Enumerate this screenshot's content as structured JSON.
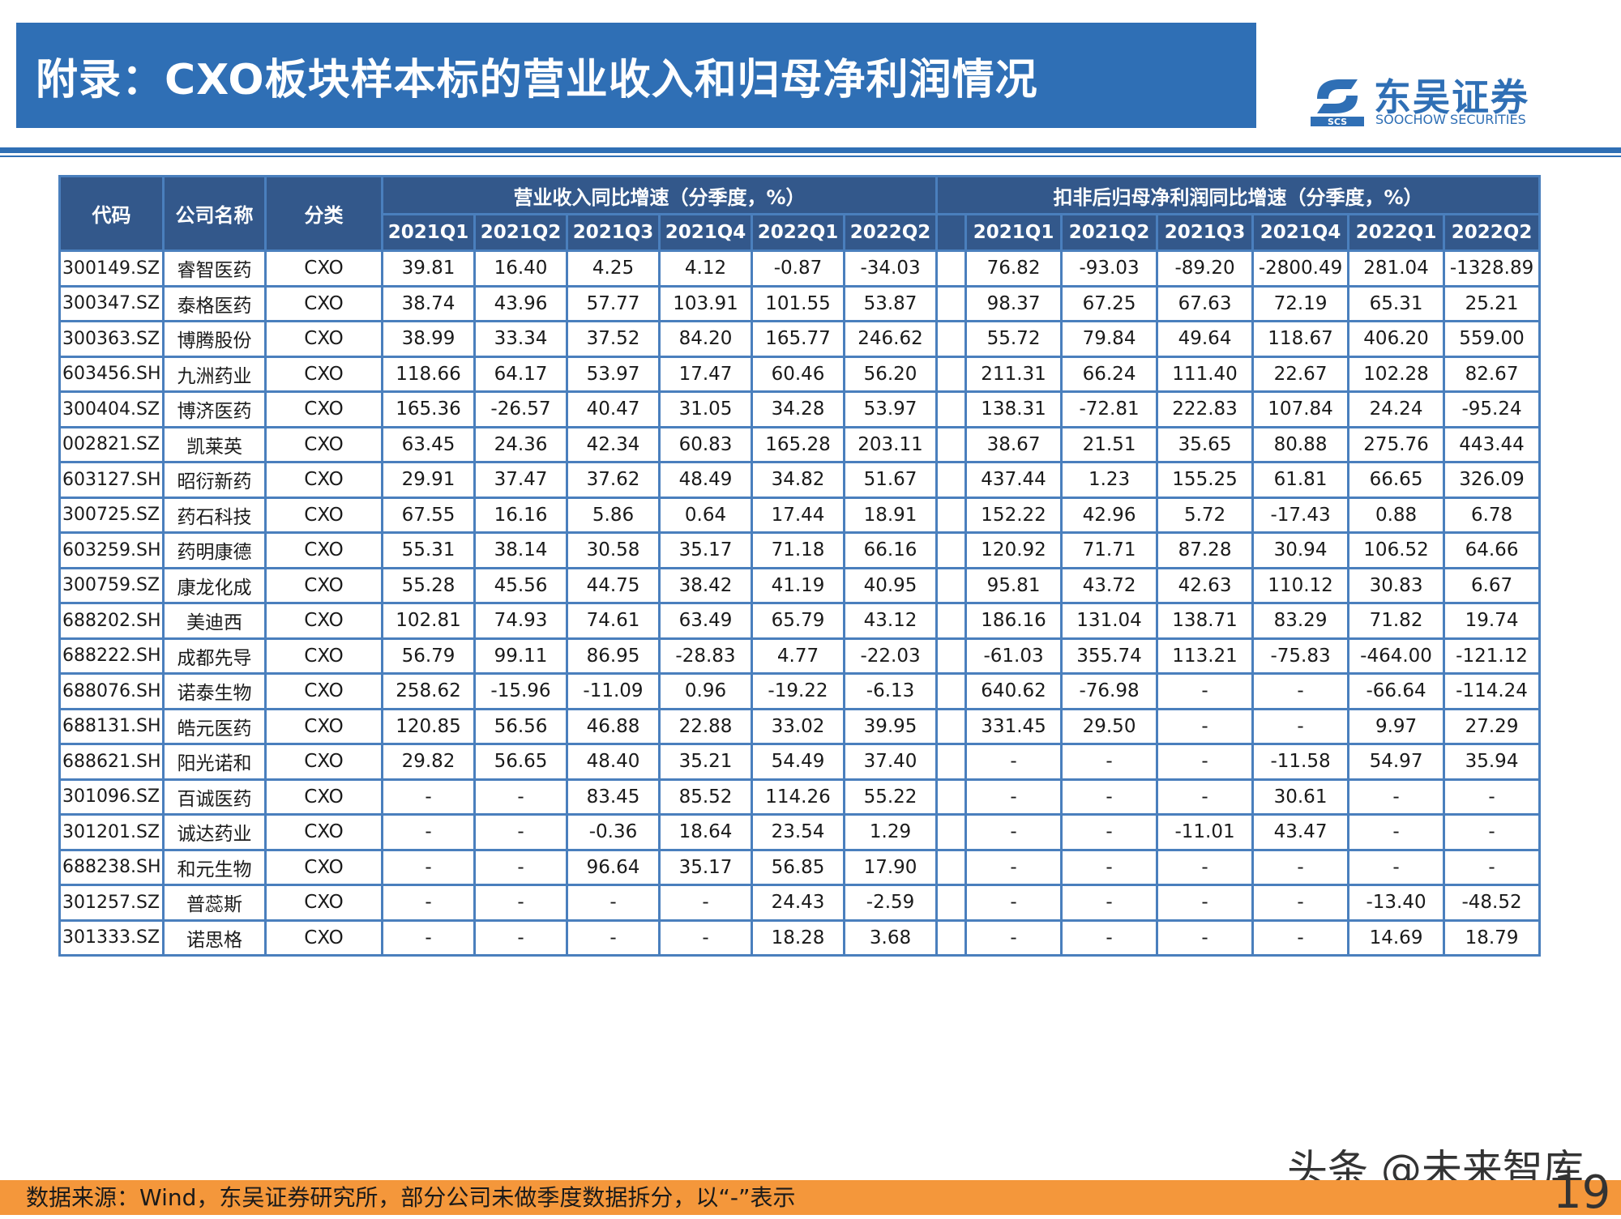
{
  "title": "附录：CXO板块样本标的营业收入和归母净利润情况",
  "logo": {
    "cn": "东吴证券",
    "en": "SOOCHOW SECURITIES",
    "mark_text": "SCS"
  },
  "table": {
    "headers": {
      "code": "代码",
      "name": "公司名称",
      "category": "分类",
      "revenue_group": "营业收入同比增速（分季度，%）",
      "profit_group": "扣非后归母净利润同比增速（分季度，%）",
      "quarters": [
        "2021Q1",
        "2021Q2",
        "2021Q3",
        "2021Q4",
        "2022Q1",
        "2022Q2"
      ]
    },
    "rows": [
      {
        "code": "300149.SZ",
        "name": "睿智医药",
        "category": "CXO",
        "revenue": [
          "39.81",
          "16.40",
          "4.25",
          "4.12",
          "-0.87",
          "-34.03"
        ],
        "profit": [
          "76.82",
          "-93.03",
          "-89.20",
          "-2800.49",
          "281.04",
          "-1328.89"
        ]
      },
      {
        "code": "300347.SZ",
        "name": "泰格医药",
        "category": "CXO",
        "revenue": [
          "38.74",
          "43.96",
          "57.77",
          "103.91",
          "101.55",
          "53.87"
        ],
        "profit": [
          "98.37",
          "67.25",
          "67.63",
          "72.19",
          "65.31",
          "25.21"
        ]
      },
      {
        "code": "300363.SZ",
        "name": "博腾股份",
        "category": "CXO",
        "revenue": [
          "38.99",
          "33.34",
          "37.52",
          "84.20",
          "165.77",
          "246.62"
        ],
        "profit": [
          "55.72",
          "79.84",
          "49.64",
          "118.67",
          "406.20",
          "559.00"
        ]
      },
      {
        "code": "603456.SH",
        "name": "九洲药业",
        "category": "CXO",
        "revenue": [
          "118.66",
          "64.17",
          "53.97",
          "17.47",
          "60.46",
          "56.20"
        ],
        "profit": [
          "211.31",
          "66.24",
          "111.40",
          "22.67",
          "102.28",
          "82.67"
        ]
      },
      {
        "code": "300404.SZ",
        "name": "博济医药",
        "category": "CXO",
        "revenue": [
          "165.36",
          "-26.57",
          "40.47",
          "31.05",
          "34.28",
          "53.97"
        ],
        "profit": [
          "138.31",
          "-72.81",
          "222.83",
          "107.84",
          "24.24",
          "-95.24"
        ]
      },
      {
        "code": "002821.SZ",
        "name": "凯莱英",
        "category": "CXO",
        "revenue": [
          "63.45",
          "24.36",
          "42.34",
          "60.83",
          "165.28",
          "203.11"
        ],
        "profit": [
          "38.67",
          "21.51",
          "35.65",
          "80.88",
          "275.76",
          "443.44"
        ]
      },
      {
        "code": "603127.SH",
        "name": "昭衍新药",
        "category": "CXO",
        "revenue": [
          "29.91",
          "37.47",
          "37.62",
          "48.49",
          "34.82",
          "51.67"
        ],
        "profit": [
          "437.44",
          "1.23",
          "155.25",
          "61.81",
          "66.65",
          "326.09"
        ]
      },
      {
        "code": "300725.SZ",
        "name": "药石科技",
        "category": "CXO",
        "revenue": [
          "67.55",
          "16.16",
          "5.86",
          "0.64",
          "17.44",
          "18.91"
        ],
        "profit": [
          "152.22",
          "42.96",
          "5.72",
          "-17.43",
          "0.88",
          "6.78"
        ]
      },
      {
        "code": "603259.SH",
        "name": "药明康德",
        "category": "CXO",
        "revenue": [
          "55.31",
          "38.14",
          "30.58",
          "35.17",
          "71.18",
          "66.16"
        ],
        "profit": [
          "120.92",
          "71.71",
          "87.28",
          "30.94",
          "106.52",
          "64.66"
        ]
      },
      {
        "code": "300759.SZ",
        "name": "康龙化成",
        "category": "CXO",
        "revenue": [
          "55.28",
          "45.56",
          "44.75",
          "38.42",
          "41.19",
          "40.95"
        ],
        "profit": [
          "95.81",
          "43.72",
          "42.63",
          "110.12",
          "30.83",
          "6.67"
        ]
      },
      {
        "code": "688202.SH",
        "name": "美迪西",
        "category": "CXO",
        "revenue": [
          "102.81",
          "74.93",
          "74.61",
          "63.49",
          "65.79",
          "43.12"
        ],
        "profit": [
          "186.16",
          "131.04",
          "138.71",
          "83.29",
          "71.82",
          "19.74"
        ]
      },
      {
        "code": "688222.SH",
        "name": "成都先导",
        "category": "CXO",
        "revenue": [
          "56.79",
          "99.11",
          "86.95",
          "-28.83",
          "4.77",
          "-22.03"
        ],
        "profit": [
          "-61.03",
          "355.74",
          "113.21",
          "-75.83",
          "-464.00",
          "-121.12"
        ]
      },
      {
        "code": "688076.SH",
        "name": "诺泰生物",
        "category": "CXO",
        "revenue": [
          "258.62",
          "-15.96",
          "-11.09",
          "0.96",
          "-19.22",
          "-6.13"
        ],
        "profit": [
          "640.62",
          "-76.98",
          "-",
          "-",
          "-66.64",
          "-114.24"
        ]
      },
      {
        "code": "688131.SH",
        "name": "皓元医药",
        "category": "CXO",
        "revenue": [
          "120.85",
          "56.56",
          "46.88",
          "22.88",
          "33.02",
          "39.95"
        ],
        "profit": [
          "331.45",
          "29.50",
          "-",
          "-",
          "9.97",
          "27.29"
        ]
      },
      {
        "code": "688621.SH",
        "name": "阳光诺和",
        "category": "CXO",
        "revenue": [
          "29.82",
          "56.65",
          "48.40",
          "35.21",
          "54.49",
          "37.40"
        ],
        "profit": [
          "-",
          "-",
          "-",
          "-11.58",
          "54.97",
          "35.94"
        ]
      },
      {
        "code": "301096.SZ",
        "name": "百诚医药",
        "category": "CXO",
        "revenue": [
          "-",
          "-",
          "83.45",
          "85.52",
          "114.26",
          "55.22"
        ],
        "profit": [
          "-",
          "-",
          "-",
          "30.61",
          "-",
          "-"
        ]
      },
      {
        "code": "301201.SZ",
        "name": "诚达药业",
        "category": "CXO",
        "revenue": [
          "-",
          "-",
          "-0.36",
          "18.64",
          "23.54",
          "1.29"
        ],
        "profit": [
          "-",
          "-",
          "-11.01",
          "43.47",
          "-",
          "-"
        ]
      },
      {
        "code": "688238.SH",
        "name": "和元生物",
        "category": "CXO",
        "revenue": [
          "-",
          "-",
          "96.64",
          "35.17",
          "56.85",
          "17.90"
        ],
        "profit": [
          "-",
          "-",
          "-",
          "-",
          "-",
          "-"
        ]
      },
      {
        "code": "301257.SZ",
        "name": "普蕊斯",
        "category": "CXO",
        "revenue": [
          "-",
          "-",
          "-",
          "-",
          "24.43",
          "-2.59"
        ],
        "profit": [
          "-",
          "-",
          "-",
          "-",
          "-13.40",
          "-48.52"
        ]
      },
      {
        "code": "301333.SZ",
        "name": "诺思格",
        "category": "CXO",
        "revenue": [
          "-",
          "-",
          "-",
          "-",
          "18.28",
          "3.68"
        ],
        "profit": [
          "-",
          "-",
          "-",
          "-",
          "14.69",
          "18.79"
        ]
      }
    ]
  },
  "source_note": "数据来源：Wind，东吴证券研究所，部分公司未做季度数据拆分，以“-”表示",
  "watermark": "头条 @未来智库",
  "page_number": "19",
  "colors": {
    "brand_blue": "#2f6fb5",
    "header_blue": "#33588b",
    "border_blue": "#4a7fbd",
    "footer_orange": "#f4973b"
  }
}
